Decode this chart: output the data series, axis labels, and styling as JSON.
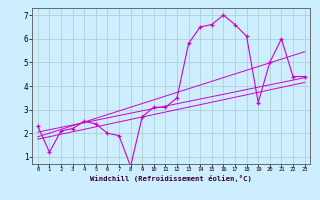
{
  "xlabel": "Windchill (Refroidissement éolien,°C)",
  "bg_color": "#cceeff",
  "line_color": "#cc00cc",
  "grid_color": "#aacccc",
  "xlim": [
    -0.5,
    23.5
  ],
  "ylim": [
    0.7,
    7.3
  ],
  "xticks": [
    0,
    1,
    2,
    3,
    4,
    5,
    6,
    7,
    8,
    9,
    10,
    11,
    12,
    13,
    14,
    15,
    16,
    17,
    18,
    19,
    20,
    21,
    22,
    23
  ],
  "yticks": [
    1,
    2,
    3,
    4,
    5,
    6,
    7
  ],
  "main_x": [
    0,
    1,
    2,
    3,
    4,
    5,
    6,
    7,
    8,
    9,
    10,
    11,
    12,
    13,
    14,
    15,
    16,
    17,
    18,
    19,
    20,
    21,
    22,
    23
  ],
  "main_y": [
    2.3,
    1.2,
    2.1,
    2.2,
    2.5,
    2.4,
    2.0,
    1.9,
    0.6,
    2.7,
    3.1,
    3.1,
    3.5,
    5.8,
    6.5,
    6.6,
    7.0,
    6.6,
    6.1,
    3.3,
    5.0,
    6.0,
    4.4,
    4.4
  ],
  "trend1_x": [
    0,
    23
  ],
  "trend1_y": [
    2.05,
    4.35
  ],
  "trend2_x": [
    0,
    23
  ],
  "trend2_y": [
    1.85,
    5.45
  ],
  "trend3_x": [
    0,
    23
  ],
  "trend3_y": [
    1.75,
    4.15
  ]
}
